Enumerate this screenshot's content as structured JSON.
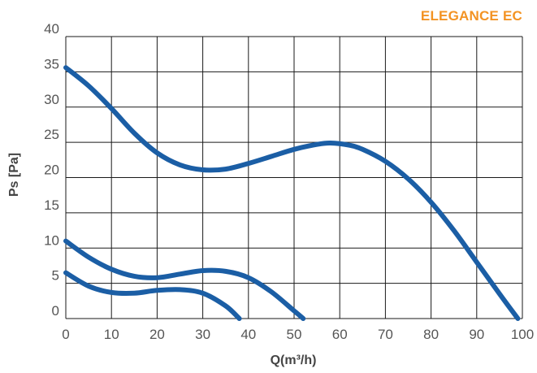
{
  "header": {
    "brand_name": "ELEGANCE",
    "brand_suffix": "EC",
    "brand_color": "#f39323"
  },
  "chart_data": {
    "type": "line",
    "title": "",
    "xlabel": "Q(m³/h)",
    "ylabel": "Ps [Pa]",
    "xlim": [
      0,
      100
    ],
    "ylim": [
      0,
      40
    ],
    "x_ticks": [
      0,
      10,
      20,
      30,
      40,
      50,
      60,
      70,
      80,
      90,
      100
    ],
    "y_ticks": [
      0,
      5,
      10,
      15,
      20,
      25,
      30,
      35,
      40
    ],
    "grid": true,
    "colors": {
      "line": "#1b5ea5",
      "grid": "#1a1a1a",
      "tick_text": "#555555",
      "label_text": "#444444"
    },
    "series": [
      {
        "x": [
          0,
          5,
          10,
          15,
          20,
          25,
          30,
          35,
          40,
          45,
          50,
          55,
          58,
          62,
          65,
          70,
          75,
          80,
          85,
          90,
          95,
          99
        ],
        "values": [
          35.6,
          33,
          29.8,
          26.3,
          23.5,
          21.8,
          21.1,
          21.2,
          22,
          23,
          24,
          24.7,
          24.9,
          24.6,
          24,
          22.3,
          19.8,
          16.5,
          12.5,
          8,
          3.5,
          0
        ]
      },
      {
        "x": [
          0,
          5,
          10,
          15,
          20,
          25,
          30,
          35,
          40,
          45,
          50,
          52
        ],
        "values": [
          11,
          8.7,
          7,
          6,
          5.8,
          6.3,
          6.8,
          6.7,
          5.8,
          3.8,
          1.1,
          0
        ]
      },
      {
        "x": [
          0,
          5,
          10,
          15,
          20,
          25,
          30,
          35,
          38
        ],
        "values": [
          6.5,
          4.6,
          3.7,
          3.6,
          4,
          4.1,
          3.6,
          1.8,
          0
        ]
      }
    ]
  }
}
